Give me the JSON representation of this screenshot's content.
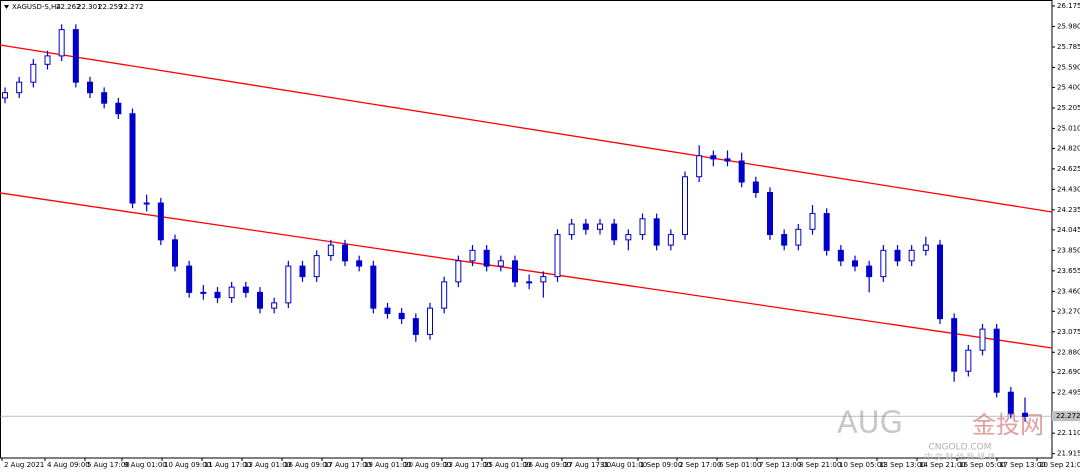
{
  "chart_data": {
    "type": "candlestick",
    "symbol": "XAGUSD-S,H4",
    "header_values": [
      22.262,
      22.301,
      22.259,
      22.272
    ],
    "price": 22.272,
    "color": "#0000cc",
    "grid": false,
    "ylim": [
      21.874,
      26.232
    ],
    "yticks": [
      26.175,
      {
        "value": 25.98,
        "label": "25.980"
      },
      25.785,
      {
        "value": 25.59,
        "label": "25.590"
      },
      {
        "value": 25.4,
        "label": "25.400"
      },
      25.205,
      {
        "value": 25.01,
        "label": "25.010"
      },
      {
        "value": 24.82,
        "label": "24.820"
      },
      24.625,
      {
        "value": 24.43,
        "label": "24.430"
      },
      24.235,
      24.045,
      {
        "value": 23.85,
        "label": "23.850"
      },
      23.655,
      {
        "value": 23.46,
        "label": "23.460"
      },
      {
        "value": 23.27,
        "label": "23.270"
      },
      23.075,
      {
        "value": 22.88,
        "label": "22.880"
      },
      {
        "value": 22.69,
        "label": "22.690"
      },
      22.495,
      {
        "value": 22.11,
        "label": "22.110"
      },
      21.915
    ],
    "x_labels": [
      "2 Aug 2021",
      "4 Aug 09:00",
      "5 Aug 17:00",
      "9 Aug 01:00",
      "10 Aug 09:00",
      "11 Aug 17:00",
      "13 Aug 01:00",
      "16 Aug 09:00",
      "17 Aug 17:00",
      "19 Aug 01:00",
      "20 Aug 09:00",
      "23 Aug 17:00",
      "25 Aug 01:00",
      "26 Aug 09:00",
      "27 Aug 17:00",
      "31 Aug 01:00",
      "1 Sep 09:00",
      "2 Sep 17:00",
      "6 Sep 01:00",
      "7 Sep 13:00",
      "8 Sep 21:00",
      "10 Sep 05:00",
      "13 Sep 13:00",
      "14 Sep 21:00",
      "16 Sep 05:00",
      "17 Sep 13:00",
      "20 Sep 21:00"
    ],
    "trend_lines": [
      {
        "color": "#ff0000",
        "values": [
          25.804,
          24.215
        ]
      },
      {
        "color": "#ff0000",
        "values": [
          24.396,
          22.921
        ]
      }
    ],
    "open": [
      25.3,
      25.35,
      25.45,
      25.62,
      25.7,
      25.95,
      25.45,
      25.35,
      25.25,
      25.15,
      24.3,
      24.3,
      23.95,
      23.7,
      23.45,
      23.45,
      23.4,
      23.5,
      23.45,
      23.3,
      23.35,
      23.7,
      23.6,
      23.8,
      23.9,
      23.75,
      23.7,
      23.3,
      23.25,
      23.2,
      23.05,
      23.3,
      23.55,
      23.75,
      23.85,
      23.7,
      23.75,
      23.55,
      23.55,
      23.6,
      24.0,
      24.1,
      24.05,
      24.1,
      23.95,
      24.0,
      24.15,
      23.9,
      24.0,
      24.55,
      24.75,
      24.72,
      24.7,
      24.5,
      24.4,
      24.0,
      23.9,
      24.05,
      24.2,
      23.85,
      23.75,
      23.7,
      23.6,
      23.85,
      23.75,
      23.85,
      23.9,
      23.2,
      22.7,
      22.9,
      23.1,
      22.5,
      22.3
    ],
    "high": [
      25.4,
      25.5,
      25.67,
      25.75,
      26.0,
      26.0,
      25.5,
      25.4,
      25.3,
      25.2,
      24.38,
      24.35,
      24.0,
      23.75,
      23.52,
      23.5,
      23.55,
      23.55,
      23.5,
      23.4,
      23.75,
      23.75,
      23.85,
      23.95,
      23.95,
      23.8,
      23.75,
      23.35,
      23.3,
      23.25,
      23.35,
      23.6,
      23.8,
      23.9,
      23.9,
      23.8,
      23.8,
      23.62,
      23.65,
      24.05,
      24.15,
      24.15,
      24.15,
      24.15,
      24.05,
      24.2,
      24.2,
      24.05,
      24.6,
      24.85,
      24.8,
      24.8,
      24.78,
      24.55,
      24.45,
      24.05,
      24.1,
      24.28,
      24.25,
      23.9,
      23.8,
      23.75,
      23.9,
      23.9,
      23.9,
      23.98,
      23.95,
      23.25,
      22.95,
      23.15,
      23.15,
      22.55,
      22.45
    ],
    "low": [
      25.25,
      25.3,
      25.4,
      25.57,
      25.65,
      25.4,
      25.3,
      25.2,
      25.1,
      24.25,
      24.22,
      23.9,
      23.65,
      23.4,
      23.38,
      23.35,
      23.35,
      23.4,
      23.25,
      23.25,
      23.3,
      23.55,
      23.55,
      23.75,
      23.7,
      23.65,
      23.25,
      23.2,
      23.15,
      22.98,
      23.0,
      23.25,
      23.5,
      23.7,
      23.65,
      23.65,
      23.5,
      23.48,
      23.4,
      23.55,
      23.95,
      24.0,
      24.0,
      23.9,
      23.85,
      23.95,
      23.85,
      23.85,
      23.95,
      24.5,
      24.65,
      24.65,
      24.45,
      24.35,
      23.95,
      23.85,
      23.85,
      24.0,
      23.8,
      23.7,
      23.65,
      23.45,
      23.55,
      23.7,
      23.7,
      23.8,
      23.15,
      22.6,
      22.65,
      22.85,
      22.45,
      22.25,
      22.22
    ],
    "close": [
      25.35,
      25.45,
      25.62,
      25.7,
      25.95,
      25.45,
      25.35,
      25.25,
      25.15,
      24.3,
      24.3,
      23.95,
      23.7,
      23.45,
      23.45,
      23.4,
      23.5,
      23.45,
      23.3,
      23.35,
      23.7,
      23.6,
      23.8,
      23.9,
      23.75,
      23.7,
      23.3,
      23.25,
      23.2,
      23.05,
      23.3,
      23.55,
      23.75,
      23.85,
      23.7,
      23.75,
      23.55,
      23.55,
      23.6,
      24.0,
      24.1,
      24.05,
      24.1,
      23.95,
      24.0,
      24.15,
      23.9,
      24.0,
      24.55,
      24.75,
      24.72,
      24.7,
      24.5,
      24.4,
      24.0,
      23.9,
      24.05,
      24.2,
      23.85,
      23.75,
      23.7,
      23.6,
      23.85,
      23.75,
      23.85,
      23.9,
      23.2,
      22.7,
      22.9,
      23.1,
      22.5,
      22.3,
      22.27
    ],
    "watermark": [
      "AUG",
      "金投网",
      "CNGOLD.COM",
      "中 文 财 经 新 媒 体"
    ]
  }
}
